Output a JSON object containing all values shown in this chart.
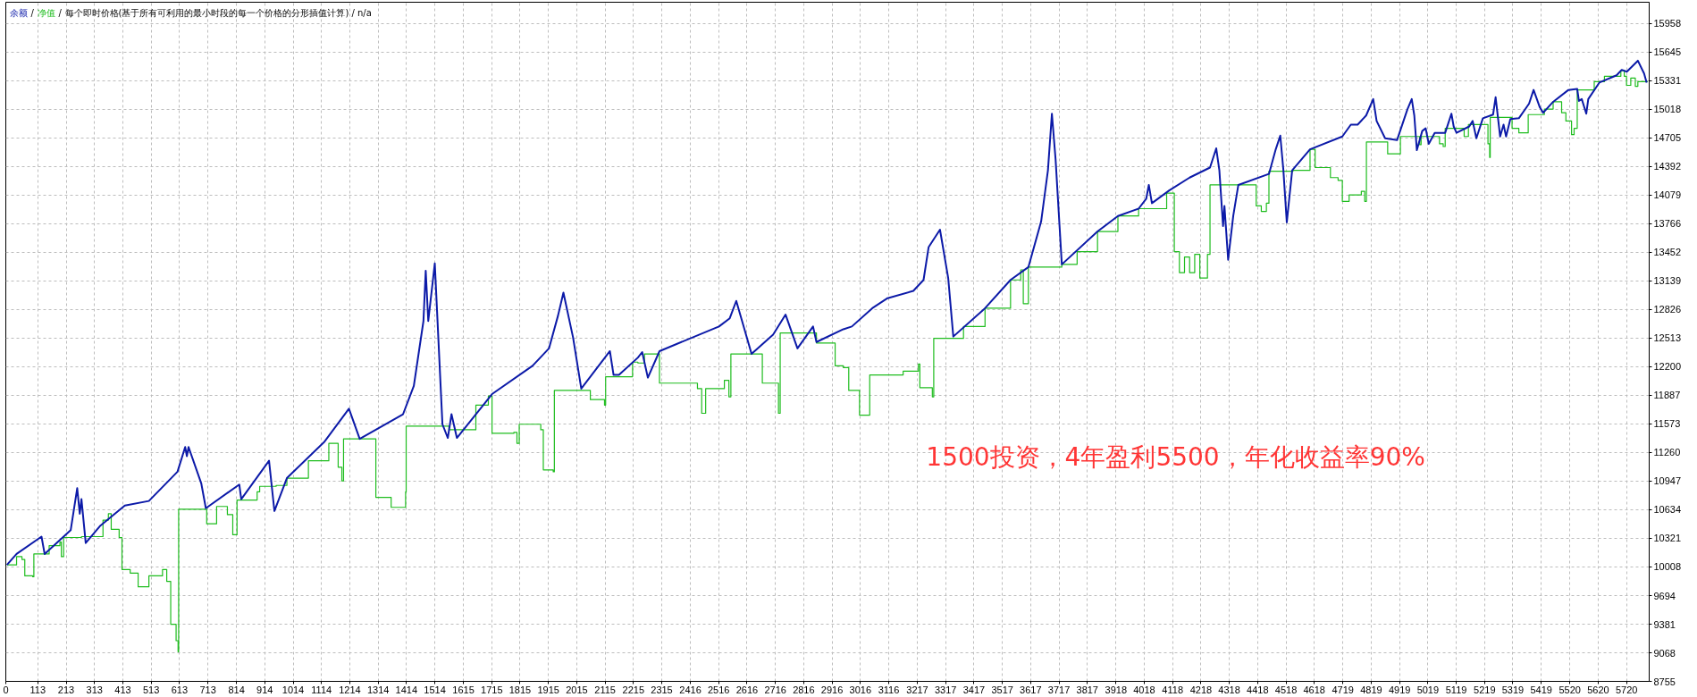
{
  "chart_data": {
    "type": "line",
    "subtitle": "每个即时价格(基于所有可利用的最小时段的每一个价格的分形插值计算) / n/a",
    "legend": "top left",
    "grid": true,
    "xlim": [
      0,
      5800
    ],
    "xticks": [
      0,
      113,
      213,
      313,
      413,
      513,
      613,
      713,
      814,
      914,
      1014,
      1114,
      1214,
      1314,
      1414,
      1514,
      1615,
      1715,
      1815,
      1915,
      2015,
      2115,
      2215,
      2315,
      2416,
      2516,
      2616,
      2716,
      2816,
      2916,
      3016,
      3116,
      3217,
      3317,
      3417,
      3517,
      3617,
      3717,
      3817,
      3918,
      4018,
      4118,
      4218,
      4318,
      4418,
      4518,
      4618,
      4719,
      4819,
      4919,
      5019,
      5119,
      5219,
      5319,
      5419,
      5520,
      5620,
      5720
    ],
    "ylim": [
      8755,
      16190
    ],
    "yticks": [
      8755,
      9068,
      9381,
      9694,
      10008,
      10321,
      10634,
      10947,
      11260,
      11573,
      11887,
      12200,
      12513,
      12826,
      13139,
      13452,
      13766,
      14079,
      14392,
      14705,
      15018,
      15331,
      15645,
      15958
    ],
    "annotations": [
      "/",
      "/",
      "1500投资，4年盈利5500，年化收益率90%"
    ],
    "series": [
      {
        "name": "余额",
        "color": "#0c1aa8",
        "x": [
          4,
          38,
          126,
          137,
          229,
          252,
          261,
          267,
          282,
          334,
          420,
          505,
          606,
          633,
          639,
          645,
          690,
          706,
          824,
          831,
          929,
          948,
          992,
          1125,
          1211,
          1249,
          1402,
          1440,
          1474,
          1482,
          1491,
          1514,
          1541,
          1560,
          1573,
          1592,
          1716,
          1859,
          1917,
          1949,
          1968,
          2002,
          2031,
          2132,
          2145,
          2164,
          2231,
          2246,
          2266,
          2307,
          2517,
          2555,
          2578,
          2632,
          2708,
          2752,
          2794,
          2849,
          2861,
          2956,
          2986,
          3058,
          3112,
          3203,
          3239,
          3257,
          3297,
          3326,
          3344,
          3456,
          3546,
          3609,
          3654,
          3678,
          3692,
          3705,
          3727,
          3853,
          3925,
          3998,
          4025,
          4034,
          4045,
          4106,
          4178,
          4250,
          4272,
          4283,
          4296,
          4301,
          4314,
          4332,
          4350,
          4458,
          4482,
          4498,
          4509,
          4521,
          4540,
          4603,
          4717,
          4747,
          4771,
          4801,
          4826,
          4838,
          4868,
          4910,
          4947,
          4962,
          4971,
          4980,
          4999,
          5011,
          5022,
          5043,
          5080,
          5102,
          5110,
          5120,
          5165,
          5177,
          5190,
          5213,
          5249,
          5258,
          5274,
          5286,
          5295,
          5310,
          5340,
          5376,
          5392,
          5414,
          5426,
          5461,
          5515,
          5546,
          5552,
          5562,
          5578,
          5585,
          5624,
          5685,
          5703,
          5721,
          5760,
          5782,
          5791
        ],
        "values": [
          10030,
          10150,
          10340,
          10150,
          10410,
          10870,
          10590,
          10750,
          10270,
          10460,
          10680,
          10730,
          11050,
          11320,
          11220,
          11320,
          10920,
          10650,
          10910,
          10750,
          11170,
          10620,
          10980,
          11380,
          11740,
          11410,
          11680,
          11990,
          12700,
          13250,
          12700,
          13330,
          11570,
          11420,
          11680,
          11420,
          11900,
          12210,
          12400,
          12760,
          13010,
          12520,
          11960,
          12370,
          12110,
          12110,
          12300,
          12360,
          12080,
          12370,
          12640,
          12730,
          12920,
          12340,
          12550,
          12770,
          12400,
          12640,
          12470,
          12610,
          12640,
          12840,
          12950,
          13030,
          13150,
          13510,
          13700,
          13170,
          12530,
          12840,
          13150,
          13290,
          13790,
          14350,
          14970,
          14470,
          13320,
          13680,
          13850,
          13930,
          14040,
          14190,
          13990,
          14130,
          14270,
          14380,
          14590,
          14350,
          13740,
          13960,
          13370,
          13850,
          14190,
          14310,
          14580,
          14730,
          14350,
          13780,
          14350,
          14580,
          14720,
          14850,
          14850,
          14950,
          15130,
          14890,
          14700,
          14680,
          15020,
          15130,
          14950,
          14570,
          14780,
          14810,
          14640,
          14760,
          14760,
          14970,
          14830,
          14760,
          14830,
          14890,
          14700,
          14920,
          14960,
          15150,
          14720,
          14850,
          14720,
          14910,
          14920,
          15080,
          15230,
          15040,
          14980,
          15100,
          15230,
          15240,
          15110,
          15130,
          14970,
          15130,
          15310,
          15390,
          15450,
          15430,
          15550,
          15410,
          15310
        ]
      },
      {
        "name": "净值",
        "color": "#1fbd1f",
        "type": "step",
        "x": [
          4,
          38,
          57,
          67,
          95,
          99,
          153,
          191,
          196,
          204,
          267,
          343,
          362,
          372,
          400,
          410,
          439,
          467,
          505,
          553,
          568,
          582,
          601,
          608,
          610,
          709,
          744,
          782,
          801,
          816,
          887,
          896,
          954,
          992,
          1068,
          1140,
          1173,
          1186,
          1192,
          1306,
          1360,
          1411,
          1413,
          1564,
          1659,
          1703,
          1716,
          1793,
          1804,
          1812,
          1888,
          1897,
          1932,
          1936,
          2063,
          2113,
          2117,
          2212,
          2231,
          2254,
          2307,
          2441,
          2456,
          2470,
          2536,
          2552,
          2559,
          2670,
          2727,
          2733,
          2861,
          2927,
          2956,
          2975,
          2986,
          3013,
          3049,
          3167,
          3221,
          3226,
          3270,
          3275,
          3380,
          3456,
          3546,
          3582,
          3591,
          3609,
          3727,
          3781,
          3853,
          3925,
          3998,
          4097,
          4124,
          4142,
          4160,
          4178,
          4196,
          4214,
          4241,
          4250,
          4413,
          4431,
          4449,
          4458,
          4543,
          4603,
          4621,
          4675,
          4702,
          4717,
          4741,
          4784,
          4796,
          4802,
          4877,
          4922,
          4990,
          4995,
          5060,
          5073,
          5080,
          5147,
          5162,
          5231,
          5237,
          5239,
          5310,
          5316,
          5340,
          5373,
          5430,
          5461,
          5491,
          5506,
          5526,
          5535,
          5546,
          5606,
          5642,
          5700,
          5712,
          5720,
          5735,
          5751,
          5760,
          5795
        ],
        "values": [
          10030,
          10120,
          10090,
          9910,
          9900,
          10150,
          10240,
          10280,
          10120,
          10330,
          10340,
          10520,
          10590,
          10420,
          10330,
          9980,
          9940,
          9790,
          9910,
          9980,
          9850,
          9380,
          9200,
          9080,
          10640,
          10480,
          10670,
          10580,
          10360,
          10740,
          10830,
          10890,
          10900,
          10980,
          11170,
          11360,
          11100,
          10950,
          11410,
          10770,
          10660,
          10830,
          11550,
          11510,
          11780,
          11880,
          11470,
          11480,
          11360,
          11570,
          11510,
          11070,
          11050,
          11940,
          11840,
          11780,
          12090,
          12250,
          12240,
          12340,
          12020,
          11960,
          11690,
          11960,
          12050,
          11870,
          12340,
          12020,
          11690,
          12570,
          12460,
          12210,
          12190,
          11940,
          11940,
          11670,
          12110,
          12150,
          12230,
          11970,
          11870,
          12510,
          12640,
          12840,
          13150,
          13260,
          12890,
          13290,
          13320,
          13460,
          13680,
          13850,
          13930,
          14100,
          13460,
          13230,
          13400,
          13230,
          13430,
          13170,
          13430,
          14190,
          13960,
          13900,
          13990,
          14340,
          14350,
          14580,
          14380,
          14270,
          14240,
          14010,
          14080,
          14120,
          14010,
          14660,
          14530,
          14720,
          14630,
          14720,
          14640,
          14610,
          14810,
          14720,
          14850,
          14640,
          14490,
          14930,
          14930,
          14810,
          14760,
          14960,
          15020,
          15100,
          14980,
          14890,
          14740,
          14810,
          15230,
          15320,
          15380,
          15440,
          15380,
          15280,
          15360,
          15270,
          15320,
          15320
        ]
      }
    ]
  }
}
